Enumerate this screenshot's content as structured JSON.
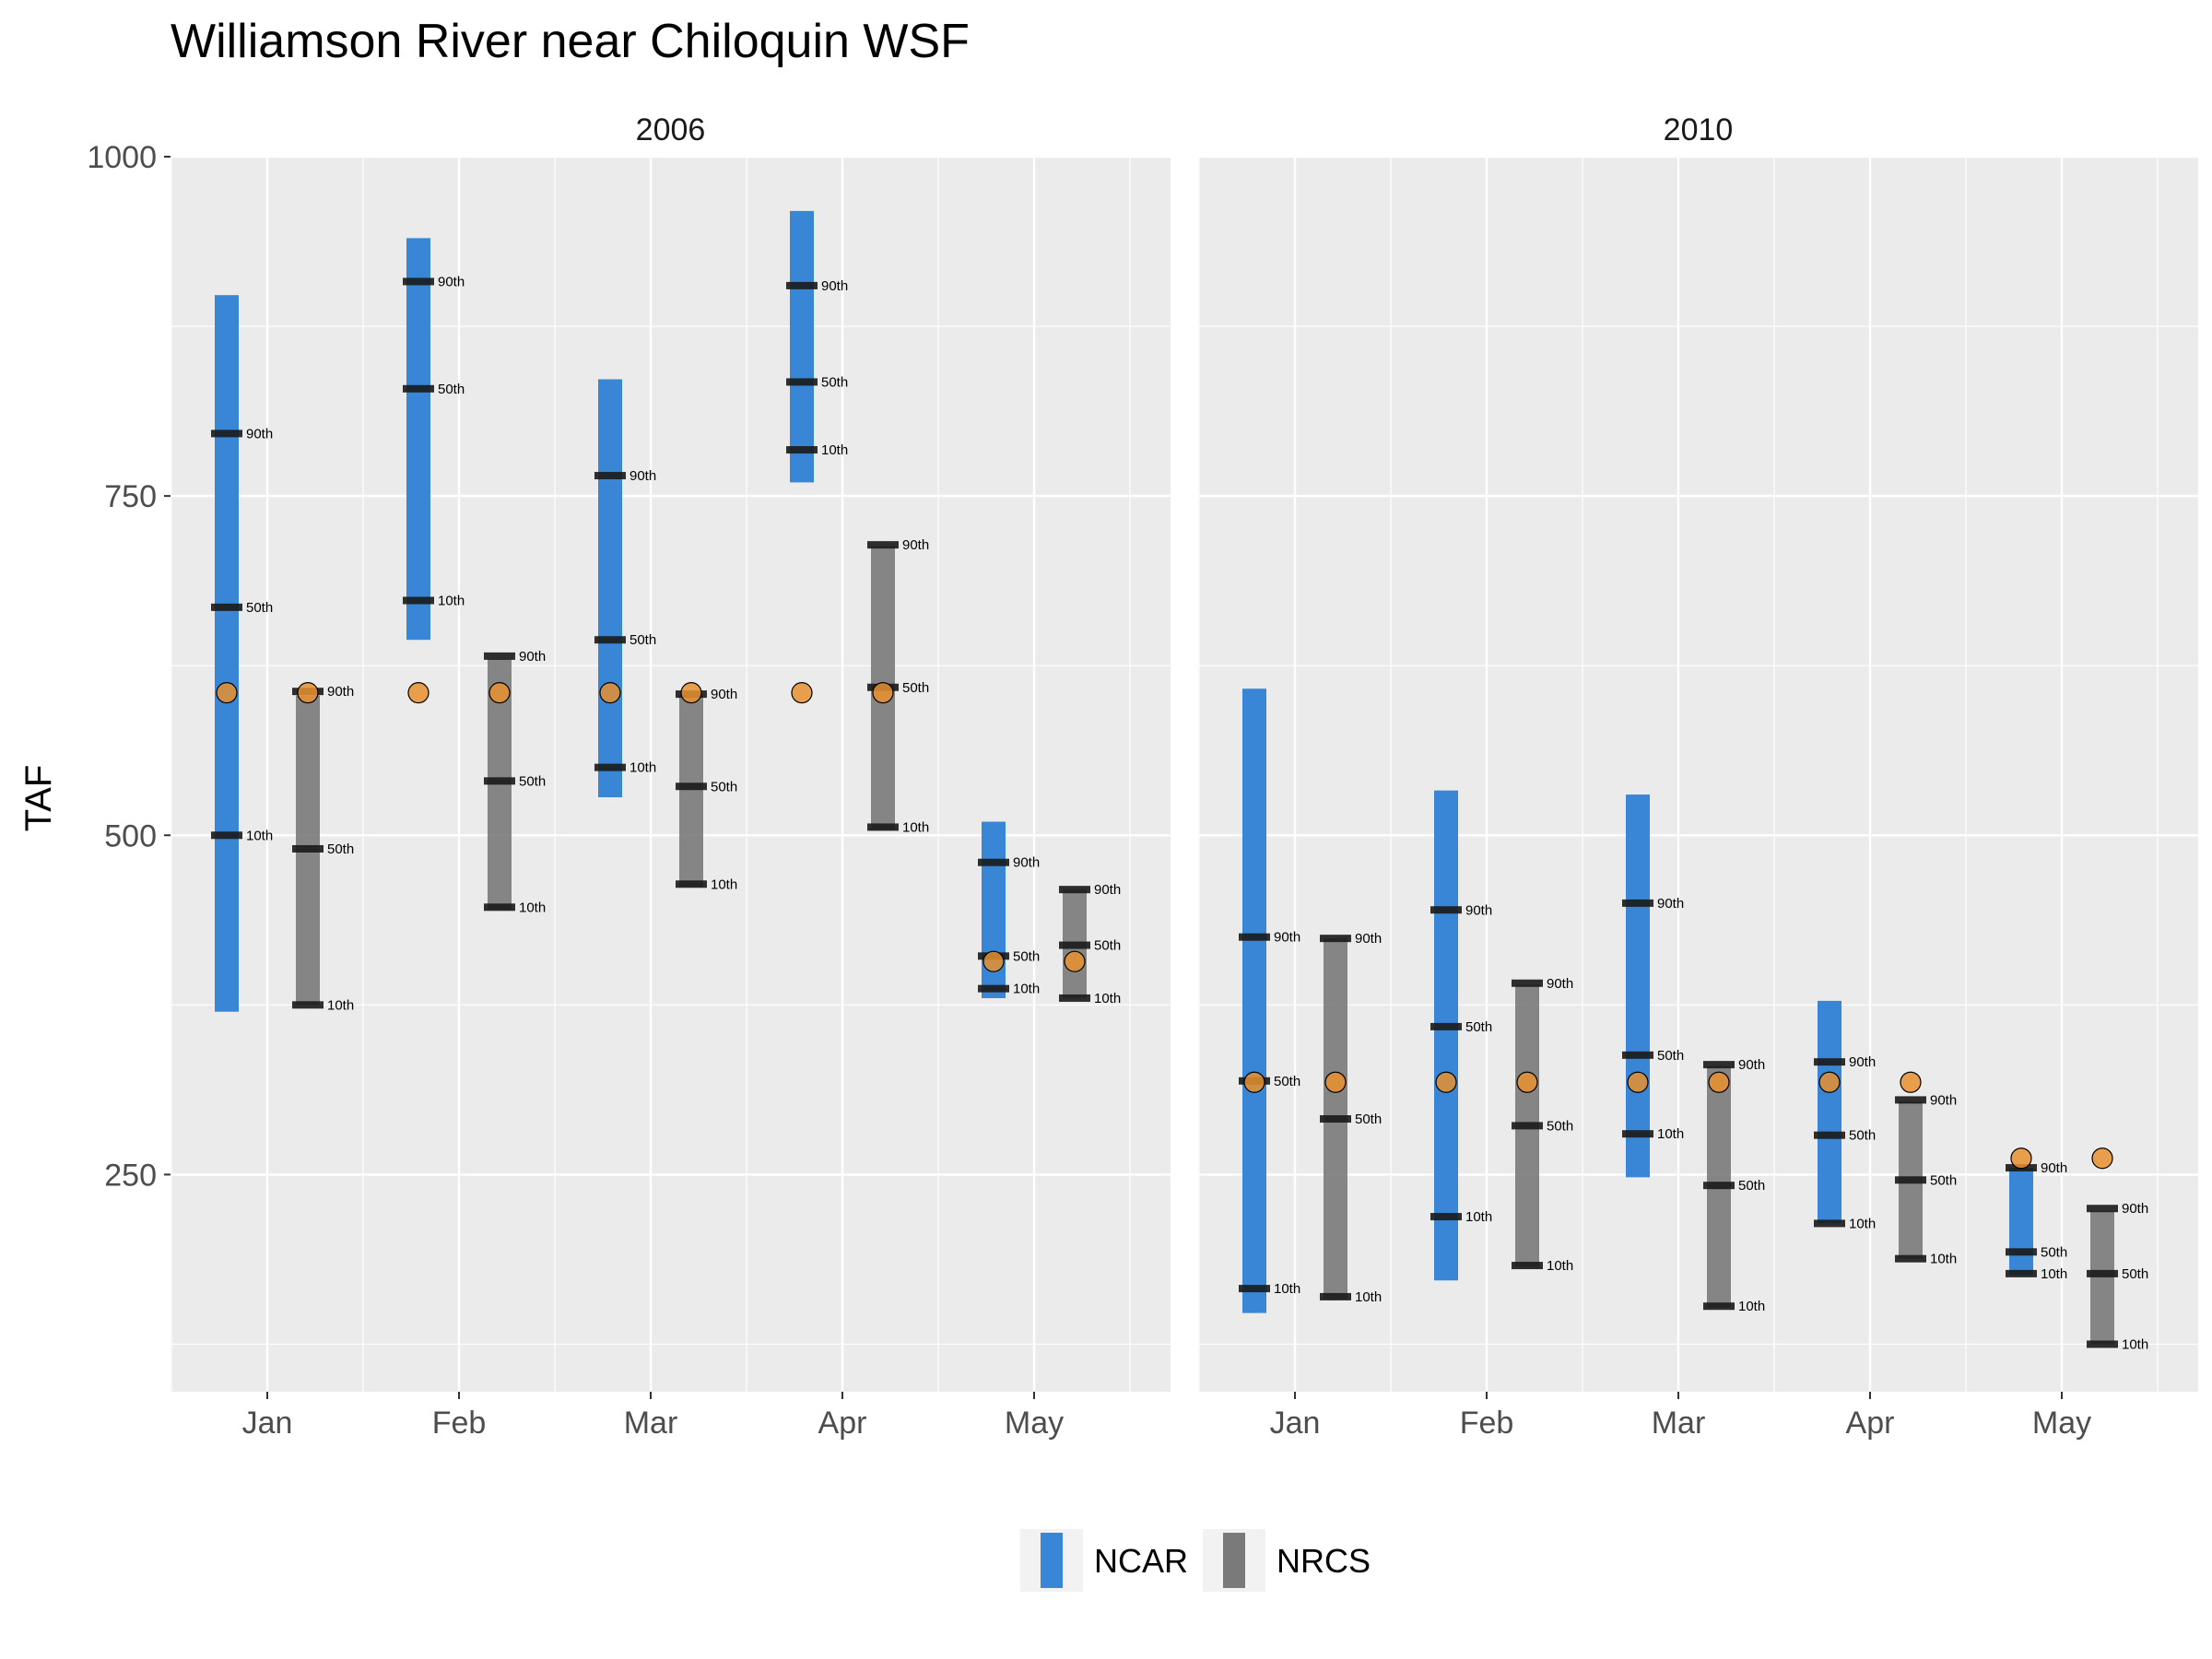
{
  "chart_data": {
    "type": "range",
    "title": "Williamson River near Chiloquin WSF",
    "ylabel": "TAF",
    "xlabel": "",
    "ylim": [
      90,
      1000
    ],
    "yticks": [
      250,
      500,
      750,
      1000
    ],
    "months": [
      "Jan",
      "Feb",
      "Mar",
      "Apr",
      "May"
    ],
    "legend": {
      "position": "bottom",
      "items": [
        {
          "name": "NCAR",
          "color": "#3a86d6"
        },
        {
          "name": "NRCS",
          "color": "#7a7a7a"
        }
      ]
    },
    "colors": {
      "NCAR": "#3a86d6",
      "NRCS": "#7a7a7a",
      "observed_point": "#e8912e",
      "panel_bg": "#ebebeb",
      "gridline": "#ffffff",
      "percentile_tick": "#1a1a1a"
    },
    "percentile_labels": [
      "10th",
      "50th",
      "90th"
    ],
    "panels": [
      {
        "strip": "2006",
        "months": [
          {
            "month": "Jan",
            "NCAR": {
              "min": 370,
              "max": 898,
              "p10": 500,
              "p50": 668,
              "p90": 796
            },
            "NRCS": {
              "min": 375,
              "max": 603,
              "p10": 375,
              "p50": 490,
              "p90": 606
            },
            "observed_ncar": 605,
            "observed_nrcs": 605
          },
          {
            "month": "Feb",
            "NCAR": {
              "min": 644,
              "max": 940,
              "p10": 673,
              "p50": 829,
              "p90": 908
            },
            "NRCS": {
              "min": 445,
              "max": 630,
              "p10": 447,
              "p50": 540,
              "p90": 632
            },
            "observed_ncar": 605,
            "observed_nrcs": 605
          },
          {
            "month": "Mar",
            "NCAR": {
              "min": 528,
              "max": 836,
              "p10": 550,
              "p50": 644,
              "p90": 765
            },
            "NRCS": {
              "min": 462,
              "max": 603,
              "p10": 464,
              "p50": 536,
              "p90": 604
            },
            "observed_ncar": 605,
            "observed_nrcs": 605
          },
          {
            "month": "Apr",
            "NCAR": {
              "min": 760,
              "max": 960,
              "p10": 784,
              "p50": 834,
              "p90": 905
            },
            "NRCS": {
              "min": 504,
              "max": 713,
              "p10": 506,
              "p50": 609,
              "p90": 714
            },
            "observed_ncar": 605,
            "observed_nrcs": 605
          },
          {
            "month": "May",
            "NCAR": {
              "min": 380,
              "max": 510,
              "p10": 387,
              "p50": 411,
              "p90": 480
            },
            "NRCS": {
              "min": 380,
              "max": 460,
              "p10": 380,
              "p50": 419,
              "p90": 460
            },
            "observed_ncar": 407,
            "observed_nrcs": 407
          }
        ]
      },
      {
        "strip": "2010",
        "months": [
          {
            "month": "Jan",
            "NCAR": {
              "min": 148,
              "max": 608,
              "p10": 166,
              "p50": 319,
              "p90": 425
            },
            "NRCS": {
              "min": 158,
              "max": 424,
              "p10": 160,
              "p50": 291,
              "p90": 424
            },
            "observed_ncar": 318,
            "observed_nrcs": 318
          },
          {
            "month": "Feb",
            "NCAR": {
              "min": 172,
              "max": 533,
              "p10": 219,
              "p50": 359,
              "p90": 445
            },
            "NRCS": {
              "min": 182,
              "max": 390,
              "p10": 183,
              "p50": 286,
              "p90": 391
            },
            "observed_ncar": 318,
            "observed_nrcs": 318
          },
          {
            "month": "Mar",
            "NCAR": {
              "min": 248,
              "max": 530,
              "p10": 280,
              "p50": 338,
              "p90": 450
            },
            "NRCS": {
              "min": 152,
              "max": 330,
              "p10": 153,
              "p50": 242,
              "p90": 331
            },
            "observed_ncar": 318,
            "observed_nrcs": 318
          },
          {
            "month": "Apr",
            "NCAR": {
              "min": 214,
              "max": 378,
              "p10": 214,
              "p50": 279,
              "p90": 333
            },
            "NRCS": {
              "min": 188,
              "max": 304,
              "p10": 188,
              "p50": 246,
              "p90": 305
            },
            "observed_ncar": 318,
            "observed_nrcs": 318
          },
          {
            "month": "May",
            "NCAR": {
              "min": 176,
              "max": 255,
              "p10": 177,
              "p50": 193,
              "p90": 255
            },
            "NRCS": {
              "min": 125,
              "max": 223,
              "p10": 125,
              "p50": 177,
              "p90": 225
            },
            "observed_ncar": 262,
            "observed_nrcs": 262
          }
        ]
      }
    ]
  }
}
